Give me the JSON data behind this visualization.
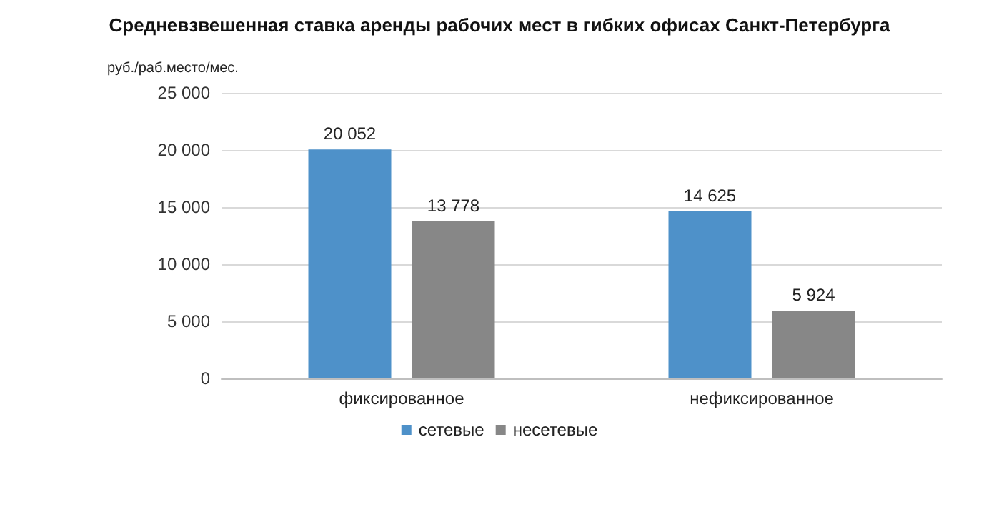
{
  "chart_data": {
    "type": "bar",
    "title": "Средневзвешенная ставка аренды рабочих мест в гибких офисах Санкт-Петербурга",
    "ylabel": "руб./раб.место/мес.",
    "categories": [
      "фиксированное",
      "нефиксированное"
    ],
    "series": [
      {
        "name": "сетевые",
        "color": "#4e91c9",
        "values": [
          20052,
          14625
        ],
        "value_labels": [
          "20 052",
          "14 625"
        ]
      },
      {
        "name": "несетевые",
        "color": "#878787",
        "values": [
          13778,
          5924
        ],
        "value_labels": [
          "13 778",
          "5 924"
        ]
      }
    ],
    "ylim": [
      0,
      25000
    ],
    "yticks": [
      {
        "value": 0,
        "label": "0"
      },
      {
        "value": 5000,
        "label": "5 000"
      },
      {
        "value": 10000,
        "label": "10 000"
      },
      {
        "value": 15000,
        "label": "15 000"
      },
      {
        "value": 20000,
        "label": "20 000"
      },
      {
        "value": 25000,
        "label": "25 000"
      }
    ],
    "grid": "y",
    "legend": "bottom"
  }
}
